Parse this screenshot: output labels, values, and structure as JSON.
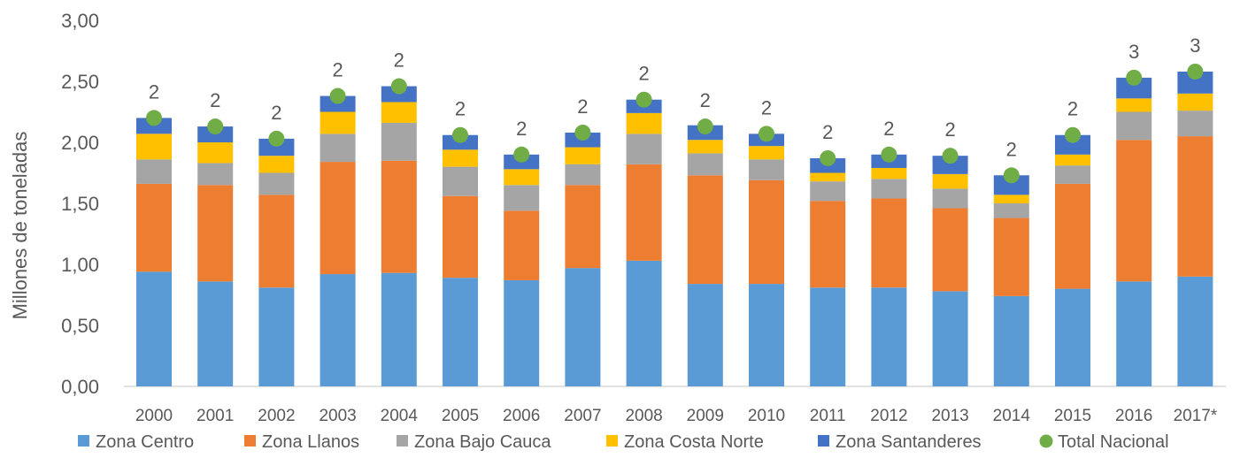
{
  "chart_data": {
    "type": "bar",
    "stacked": true,
    "ylabel": "Millones de toneladas",
    "ylim": [
      0,
      3
    ],
    "yticks": [
      "0,00",
      "0,50",
      "1,00",
      "1,50",
      "2,00",
      "2,50",
      "3,00"
    ],
    "categories": [
      "2000",
      "2001",
      "2002",
      "2003",
      "2004",
      "2005",
      "2006",
      "2007",
      "2008",
      "2009",
      "2010",
      "2011",
      "2012",
      "2013",
      "2014",
      "2015",
      "2016",
      "2017*"
    ],
    "series": [
      {
        "name": "Zona Centro",
        "color": "#5b9bd5",
        "values": [
          0.94,
          0.86,
          0.81,
          0.92,
          0.93,
          0.89,
          0.87,
          0.97,
          1.03,
          0.84,
          0.84,
          0.81,
          0.81,
          0.78,
          0.74,
          0.8,
          0.86,
          0.9
        ]
      },
      {
        "name": "Zona Llanos",
        "color": "#ed7d31",
        "values": [
          0.72,
          0.79,
          0.76,
          0.92,
          0.92,
          0.67,
          0.57,
          0.68,
          0.79,
          0.89,
          0.85,
          0.71,
          0.73,
          0.68,
          0.64,
          0.86,
          1.16,
          1.15
        ]
      },
      {
        "name": "Zona Bajo Cauca",
        "color": "#a5a5a5",
        "values": [
          0.2,
          0.18,
          0.18,
          0.23,
          0.31,
          0.24,
          0.21,
          0.17,
          0.25,
          0.18,
          0.17,
          0.16,
          0.16,
          0.16,
          0.12,
          0.15,
          0.23,
          0.21
        ]
      },
      {
        "name": "Zona Costa Norte",
        "color": "#ffc000",
        "values": [
          0.21,
          0.17,
          0.14,
          0.18,
          0.17,
          0.14,
          0.13,
          0.14,
          0.17,
          0.11,
          0.11,
          0.07,
          0.09,
          0.12,
          0.07,
          0.09,
          0.11,
          0.14
        ]
      },
      {
        "name": "Zona Santanderes",
        "color": "#4472c4",
        "values": [
          0.13,
          0.13,
          0.14,
          0.13,
          0.13,
          0.12,
          0.12,
          0.12,
          0.11,
          0.12,
          0.1,
          0.12,
          0.11,
          0.15,
          0.16,
          0.16,
          0.17,
          0.18
        ]
      }
    ],
    "total": {
      "name": "Total Nacional",
      "color": "#70ad47",
      "values": [
        2.2,
        2.13,
        2.03,
        2.38,
        2.46,
        2.06,
        1.9,
        2.08,
        2.35,
        2.13,
        2.07,
        1.87,
        1.9,
        1.89,
        1.73,
        2.06,
        2.53,
        2.58
      ],
      "labels": [
        "2",
        "2",
        "2",
        "2",
        "2",
        "2",
        "2",
        "2",
        "2",
        "2",
        "2",
        "2",
        "2",
        "2",
        "2",
        "2",
        "3",
        "3"
      ]
    },
    "legend": {
      "position": "bottom",
      "entries": [
        "Zona Centro",
        "Zona Llanos",
        "Zona Bajo Cauca",
        "Zona Costa Norte",
        "Zona Santanderes",
        "Total Nacional"
      ]
    },
    "grid": false
  }
}
